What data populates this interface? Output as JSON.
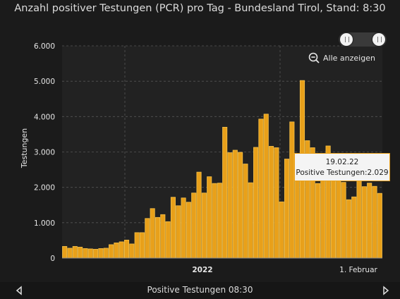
{
  "colors": {
    "bar_fill": "#e8a01a",
    "bar_stroke": "#f5c04a",
    "grid": "#555555",
    "background": "#1b1b1b",
    "tooltip_border": "#e8a01a"
  },
  "controls": {
    "show_all_label": "Alle anzeigen",
    "zoom_icon": "zoom-out-icon",
    "prev_icon": "chevron-left-icon",
    "next_icon": "chevron-right-icon"
  },
  "tooltip": {
    "date": "19.02.22",
    "text": "Positive Testungen:2.029"
  },
  "footer": {
    "label": "Positive Testungen 08:30"
  },
  "chart_data": {
    "type": "bar",
    "title": "Anzahl positiver Testungen (PCR) pro Tag - Bundesland Tirol, Stand: 8:30",
    "ylabel": "Testungen",
    "xlabel": "",
    "ylim": [
      0,
      6000
    ],
    "yticks": [
      "0",
      "1.000",
      "2.000",
      "3.000",
      "4.000",
      "5.000",
      "6.000"
    ],
    "xtick_labels": [
      "2022",
      "1. Februar"
    ],
    "grid": true,
    "series": [
      {
        "values": [
          330,
          280,
          330,
          310,
          270,
          260,
          250,
          270,
          280,
          380,
          430,
          460,
          510,
          400,
          720,
          720,
          1120,
          1400,
          1150,
          1230,
          1030,
          1720,
          1480,
          1700,
          1580,
          1840,
          2430,
          1840,
          2300,
          2110,
          2120,
          3700,
          2980,
          3050,
          2990,
          2660,
          2130,
          3130,
          3930,
          4070,
          3160,
          3120,
          1590,
          2800,
          3850,
          2270,
          5020,
          3320,
          3120,
          2110,
          2760,
          3170,
          2620,
          2600,
          2140,
          1650,
          1730,
          2200,
          2020,
          2120,
          2029,
          1830
        ]
      }
    ]
  }
}
